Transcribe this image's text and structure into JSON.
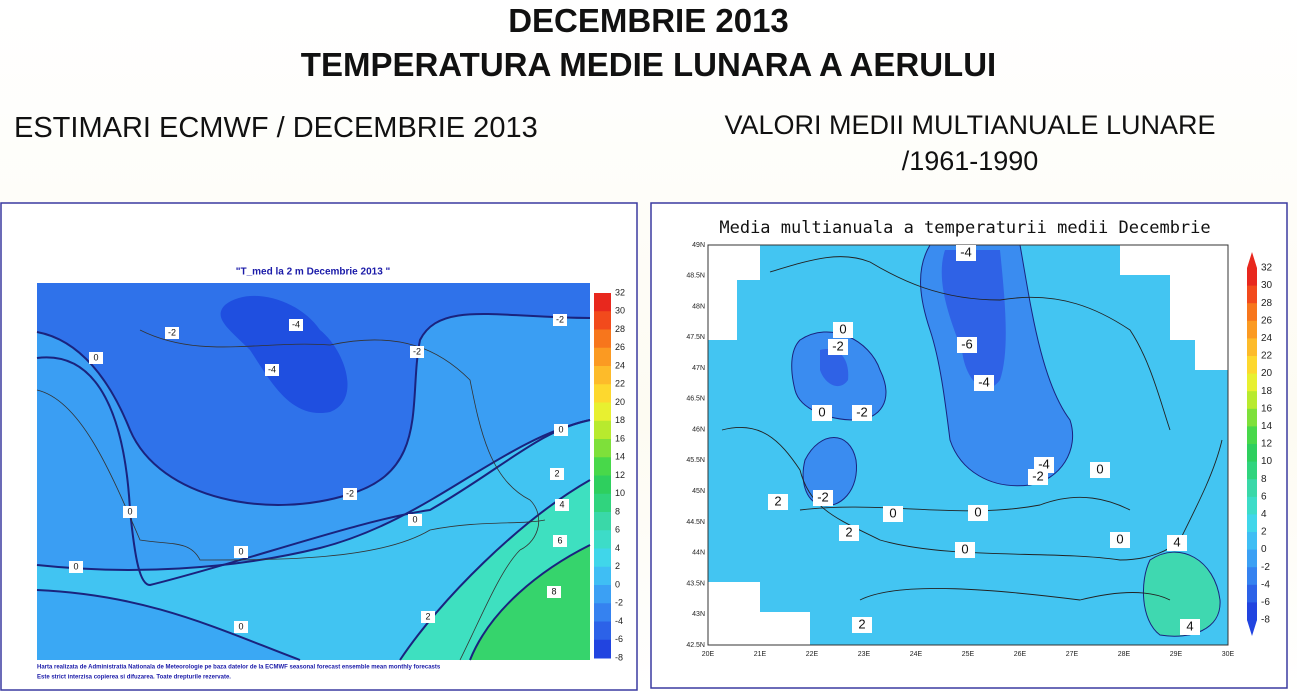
{
  "header": {
    "title_lines": [
      "DECEMBRIE 2013",
      "TEMPERATURA MEDIE LUNARA A AERULUI"
    ]
  },
  "left": {
    "heading": "ESTIMARI ECMWF / DECEMBRIE 2013"
  },
  "right": {
    "heading_lines": [
      "VALORI MEDII MULTIANUALE LUNARE",
      "/1961-1990"
    ]
  },
  "left_map": {
    "title": "\"T_med la 2 m Decembrie 2013 \"",
    "colorbar_ticks": [
      32,
      30,
      28,
      26,
      24,
      22,
      20,
      18,
      16,
      14,
      12,
      10,
      8,
      6,
      4,
      2,
      0,
      -2,
      -4,
      -6,
      -8
    ],
    "contour_labels": [
      -4,
      -2,
      -4,
      -2,
      -2,
      0,
      0,
      -2,
      2,
      0,
      0,
      4,
      0,
      6,
      0,
      8,
      2,
      0
    ],
    "footer_lines": [
      "Harta realizata de Administratia Nationala de Meteorologie pe baza datelor de la ECMWF seasonal forecast ensemble mean monthly forecasts",
      "Este strict interzisa copierea si difuzarea. Toate drepturile rezervate."
    ]
  },
  "right_map": {
    "title": "Media multianuala a temperaturii medii Decembrie",
    "y_labels": [
      "49N",
      "48.5N",
      "48N",
      "47.5N",
      "47N",
      "46.5N",
      "46N",
      "45.5N",
      "45N",
      "44.5N",
      "44N",
      "43.5N",
      "43N",
      "42.5N"
    ],
    "x_labels": [
      "20E",
      "21E",
      "22E",
      "23E",
      "24E",
      "25E",
      "26E",
      "27E",
      "28E",
      "29E",
      "30E"
    ],
    "colorbar_ticks": [
      32,
      30,
      28,
      26,
      24,
      22,
      20,
      18,
      16,
      14,
      12,
      10,
      8,
      6,
      4,
      2,
      0,
      -2,
      -4,
      -6,
      -8
    ],
    "contour_labels": [
      -4,
      0,
      -2,
      -6,
      -4,
      0,
      -2,
      -4,
      -2,
      0,
      2,
      -2,
      0,
      0,
      2,
      0,
      0,
      4,
      2,
      4
    ]
  }
}
